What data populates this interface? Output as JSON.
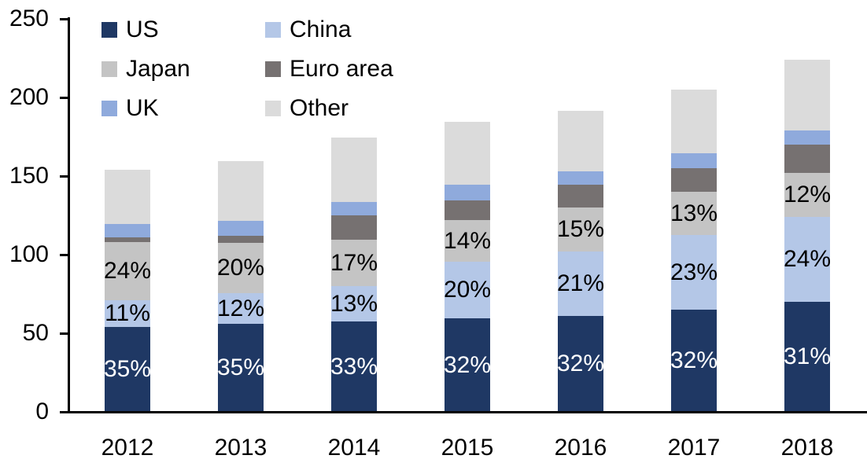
{
  "chart_data": {
    "type": "bar",
    "stacked": true,
    "title": "",
    "xlabel": "",
    "ylabel": "",
    "categories": [
      "2012",
      "2013",
      "2014",
      "2015",
      "2016",
      "2017",
      "2018"
    ],
    "series": [
      {
        "name": "US",
        "color": "#1F3864",
        "values": [
          54,
          56,
          57.5,
          59.5,
          61,
          65,
          70
        ],
        "labels": [
          "35%",
          "35%",
          "33%",
          "32%",
          "32%",
          "32%",
          "31%"
        ],
        "label_color": "#FFFFFF"
      },
      {
        "name": "China",
        "color": "#B4C7E7",
        "values": [
          17,
          19.5,
          22.5,
          36,
          41,
          47.5,
          54
        ],
        "labels": [
          "11%",
          "12%",
          "13%",
          "20%",
          "21%",
          "23%",
          "24%"
        ],
        "label_color": "#000000"
      },
      {
        "name": "Japan",
        "color": "#C4C4C4",
        "values": [
          37,
          32,
          29.5,
          26.5,
          28,
          27.5,
          28
        ],
        "labels": [
          "24%",
          "20%",
          "17%",
          "14%",
          "15%",
          "13%",
          "12%"
        ],
        "label_color": "#000000"
      },
      {
        "name": "Euro area",
        "color": "#767171",
        "values": [
          3,
          4.5,
          15.5,
          12.5,
          14.5,
          15,
          18
        ],
        "labels": null,
        "label_color": null
      },
      {
        "name": "UK",
        "color": "#8FAADC",
        "values": [
          8.5,
          9.5,
          8.5,
          10,
          8.5,
          9.5,
          9
        ],
        "labels": null,
        "label_color": null
      },
      {
        "name": "Other",
        "color": "#DBDBDB",
        "values": [
          34.5,
          38,
          41,
          40,
          38.5,
          40.5,
          45
        ],
        "labels": null,
        "label_color": null
      }
    ],
    "totals": [
      154,
      159.5,
      174.5,
      184.5,
      192,
      205,
      224
    ],
    "y_ticks": [
      0,
      50,
      100,
      150,
      200,
      250
    ],
    "ylim": [
      0,
      250
    ],
    "grid": false,
    "axis_color": "#000000",
    "legend_position": "top-left",
    "legend_columns": 2
  }
}
